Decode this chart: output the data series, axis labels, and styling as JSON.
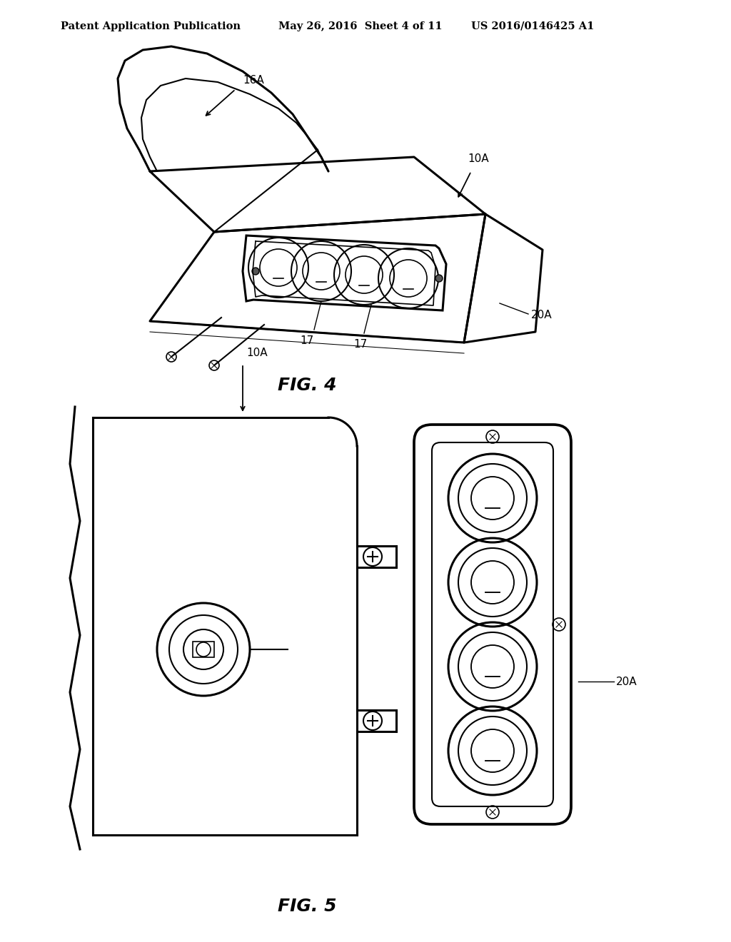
{
  "header_left": "Patent Application Publication",
  "header_center": "May 26, 2016  Sheet 4 of 11",
  "header_right": "US 2016/0146425 A1",
  "fig4_label": "FIG. 4",
  "fig5_label": "FIG. 5",
  "line_color": "#000000",
  "bg_color": "#ffffff"
}
